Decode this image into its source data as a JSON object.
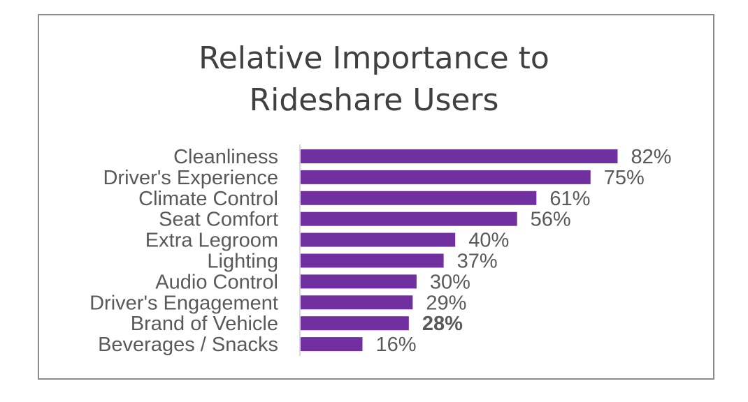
{
  "chart_data": {
    "type": "bar",
    "orientation": "horizontal",
    "title": "Relative Importance to Rideshare Users",
    "title_lines": [
      "Relative Importance to",
      "Rideshare Users"
    ],
    "categories": [
      "Cleanliness",
      "Driver's Experience",
      "Climate Control",
      "Seat Comfort",
      "Extra Legroom",
      "Lighting",
      "Audio Control",
      "Driver's Engagement",
      "Brand of Vehicle",
      "Beverages / Snacks"
    ],
    "values": [
      82,
      75,
      61,
      56,
      40,
      37,
      30,
      29,
      28,
      16
    ],
    "value_labels": [
      "82%",
      "75%",
      "61%",
      "56%",
      "40%",
      "37%",
      "30%",
      "29%",
      "28%",
      "16%"
    ],
    "bold_value_index": 8,
    "xlim": [
      0,
      100
    ],
    "xlabel": "",
    "ylabel": "",
    "grid": false,
    "legend": "none",
    "colors": {
      "bar": "#7030a0",
      "text": "#595959",
      "title": "#404040",
      "axis": "#d9d9d9",
      "border": "#8c8c8c"
    }
  }
}
